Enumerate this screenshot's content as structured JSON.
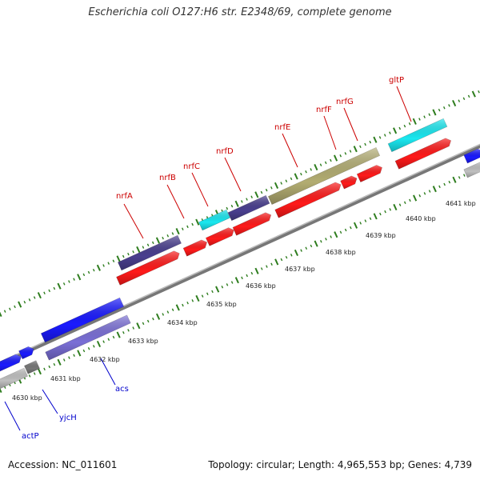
{
  "title": "Escherichia coli O127:H6 str. E2348/69, complete genome",
  "footer": {
    "accession": "Accession: NC_011601",
    "topology": "Topology: circular; Length: 4,965,553 bp; Genes: 4,739"
  },
  "colors": {
    "backbone": "#888888",
    "tick": "#2e7d1e",
    "red_feature": "#ff1a1a",
    "blue_feature": "#1a1aff",
    "navy_feature": "#4a3f8f",
    "cyan_feature": "#1ae8f0",
    "olive_feature": "#b3ad72",
    "lavender_feature": "#7a6fd6",
    "gray_feature": "#c0c0c0",
    "darkgray_feature": "#777777",
    "label_red": "#cc0000",
    "label_blue": "#0000cc"
  },
  "kbp_labels": [
    "4630 kbp",
    "4631 kbp",
    "4632 kbp",
    "4633 kbp",
    "4634 kbp",
    "4635 kbp",
    "4636 kbp",
    "4637 kbp",
    "4638 kbp",
    "4639 kbp",
    "4640 kbp",
    "4641 kbp"
  ],
  "gene_labels_top": [
    "nrfA",
    "nrfB",
    "nrfC",
    "nrfD",
    "nrfE",
    "nrfF",
    "nrfG",
    "gltP"
  ],
  "gene_labels_bottom": [
    "actP",
    "yjcH",
    "acs"
  ]
}
